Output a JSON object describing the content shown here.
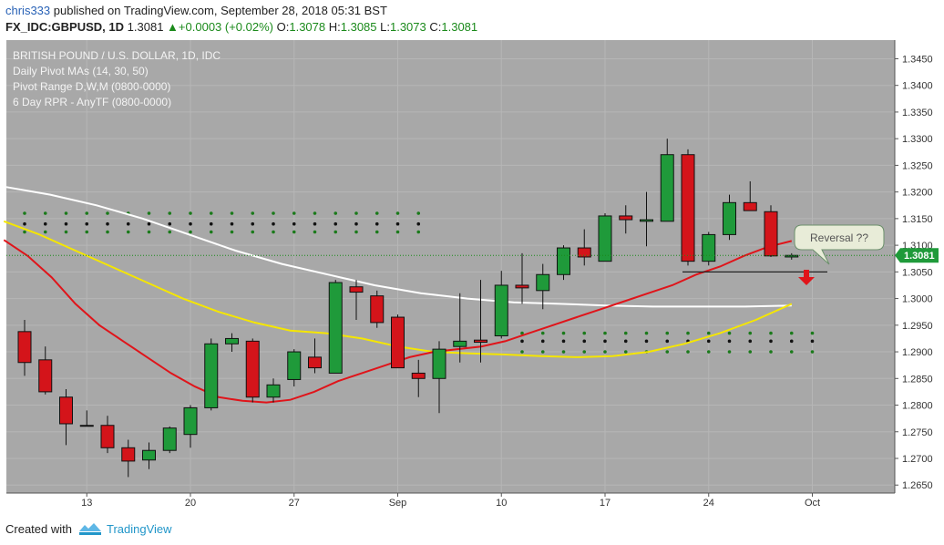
{
  "header": {
    "user": "chris333",
    "published": " published on TradingView.com, September 28, 2018 05:31 BST",
    "symbol": "FX_IDC:GBPUSD, 1D",
    "last": "1.3081",
    "change": "+0.0003 (+0.02%)",
    "open_label": "O:",
    "open": "1.3078",
    "high_label": "H:",
    "high": "1.3085",
    "low_label": "L:",
    "low": "1.3073",
    "close_label": "C:",
    "close": "1.3081"
  },
  "footer": {
    "created_with": "Created with",
    "brand": "TradingView"
  },
  "chart_data": {
    "type": "candlestick",
    "title": "BRITISH POUND / U.S. DOLLAR, 1D, IDC",
    "indicators": [
      "Daily Pivot MAs (14, 30, 50)",
      "Pivot Range D,W,M (0800-0000)",
      "6 Day RPR - AnyTF (0800-0000)"
    ],
    "ylim": [
      1.2635,
      1.3485
    ],
    "yticks": [
      "1.3450",
      "1.3400",
      "1.3350",
      "1.3300",
      "1.3250",
      "1.3200",
      "1.3150",
      "1.3100",
      "1.3050",
      "1.3000",
      "1.2950",
      "1.2900",
      "1.2850",
      "1.2800",
      "1.2750",
      "1.2700",
      "1.2650"
    ],
    "xticks": [
      {
        "label": "13",
        "i": 3
      },
      {
        "label": "20",
        "i": 8
      },
      {
        "label": "27",
        "i": 13
      },
      {
        "label": "Sep",
        "i": 18
      },
      {
        "label": "10",
        "i": 23
      },
      {
        "label": "17",
        "i": 28
      },
      {
        "label": "24",
        "i": 33
      },
      {
        "label": "Oct",
        "i": 38
      }
    ],
    "last_price": "1.3081",
    "annotation": "Reversal ??",
    "candles": [
      {
        "o": 1.2938,
        "h": 1.296,
        "l": 1.2855,
        "c": 1.288
      },
      {
        "o": 1.2885,
        "h": 1.291,
        "l": 1.282,
        "c": 1.2825
      },
      {
        "o": 1.2815,
        "h": 1.283,
        "l": 1.2725,
        "c": 1.2765
      },
      {
        "o": 1.2762,
        "h": 1.279,
        "l": 1.276,
        "c": 1.2761
      },
      {
        "o": 1.2762,
        "h": 1.278,
        "l": 1.271,
        "c": 1.272
      },
      {
        "o": 1.272,
        "h": 1.2735,
        "l": 1.2665,
        "c": 1.2695
      },
      {
        "o": 1.2697,
        "h": 1.273,
        "l": 1.268,
        "c": 1.2715
      },
      {
        "o": 1.2715,
        "h": 1.276,
        "l": 1.271,
        "c": 1.2757
      },
      {
        "o": 1.2745,
        "h": 1.28,
        "l": 1.272,
        "c": 1.2795
      },
      {
        "o": 1.2795,
        "h": 1.2925,
        "l": 1.279,
        "c": 1.2915
      },
      {
        "o": 1.2915,
        "h": 1.2935,
        "l": 1.29,
        "c": 1.2925
      },
      {
        "o": 1.292,
        "h": 1.2925,
        "l": 1.2805,
        "c": 1.2815
      },
      {
        "o": 1.2815,
        "h": 1.285,
        "l": 1.2805,
        "c": 1.2838
      },
      {
        "o": 1.2848,
        "h": 1.2905,
        "l": 1.2835,
        "c": 1.29
      },
      {
        "o": 1.289,
        "h": 1.2925,
        "l": 1.286,
        "c": 1.287
      },
      {
        "o": 1.286,
        "h": 1.3035,
        "l": 1.286,
        "c": 1.303
      },
      {
        "o": 1.3022,
        "h": 1.3035,
        "l": 1.296,
        "c": 1.3012
      },
      {
        "o": 1.3005,
        "h": 1.3015,
        "l": 1.2945,
        "c": 1.2955
      },
      {
        "o": 1.2965,
        "h": 1.297,
        "l": 1.287,
        "c": 1.287
      },
      {
        "o": 1.286,
        "h": 1.2885,
        "l": 1.2815,
        "c": 1.285
      },
      {
        "o": 1.285,
        "h": 1.292,
        "l": 1.2785,
        "c": 1.2905
      },
      {
        "o": 1.291,
        "h": 1.301,
        "l": 1.288,
        "c": 1.292
      },
      {
        "o": 1.2922,
        "h": 1.3035,
        "l": 1.288,
        "c": 1.2918
      },
      {
        "o": 1.293,
        "h": 1.3052,
        "l": 1.2925,
        "c": 1.3025
      },
      {
        "o": 1.3025,
        "h": 1.3085,
        "l": 1.299,
        "c": 1.302
      },
      {
        "o": 1.3015,
        "h": 1.3065,
        "l": 1.298,
        "c": 1.3045
      },
      {
        "o": 1.3045,
        "h": 1.31,
        "l": 1.3035,
        "c": 1.3095
      },
      {
        "o": 1.3095,
        "h": 1.313,
        "l": 1.3062,
        "c": 1.3078
      },
      {
        "o": 1.307,
        "h": 1.316,
        "l": 1.307,
        "c": 1.3155
      },
      {
        "o": 1.3155,
        "h": 1.3175,
        "l": 1.3122,
        "c": 1.3148
      },
      {
        "o": 1.3145,
        "h": 1.32,
        "l": 1.3098,
        "c": 1.3148
      },
      {
        "o": 1.3145,
        "h": 1.33,
        "l": 1.3145,
        "c": 1.327
      },
      {
        "o": 1.327,
        "h": 1.328,
        "l": 1.3062,
        "c": 1.307
      },
      {
        "o": 1.307,
        "h": 1.3125,
        "l": 1.3062,
        "c": 1.312
      },
      {
        "o": 1.312,
        "h": 1.3195,
        "l": 1.311,
        "c": 1.318
      },
      {
        "o": 1.318,
        "h": 1.322,
        "l": 1.317,
        "c": 1.3165
      },
      {
        "o": 1.3163,
        "h": 1.3175,
        "l": 1.3078,
        "c": 1.308
      },
      {
        "o": 1.3078,
        "h": 1.3085,
        "l": 1.3073,
        "c": 1.3081
      }
    ],
    "ma14": [
      1.311,
      1.308,
      1.304,
      1.299,
      1.295,
      1.292,
      1.289,
      1.286,
      1.2835,
      1.2815,
      1.2808,
      1.2805,
      1.281,
      1.2825,
      1.2845,
      1.286,
      1.2875,
      1.289,
      1.29,
      1.2905,
      1.291,
      1.292,
      1.2935,
      1.295,
      1.2965,
      1.298,
      1.2995,
      1.301,
      1.3025,
      1.3045,
      1.306,
      1.308,
      1.3097,
      1.3108
    ],
    "ma14_x": [
      8,
      11,
      14,
      17,
      20,
      23,
      26,
      29,
      32,
      35,
      38,
      41,
      44,
      47,
      50,
      53,
      56,
      59,
      62,
      65,
      68,
      71,
      74,
      77,
      80,
      83,
      86,
      89,
      92,
      95,
      98,
      101,
      104,
      107
    ],
    "ma30": [
      1.3145,
      1.312,
      1.309,
      1.306,
      1.303,
      1.3,
      1.2975,
      1.2955,
      1.294,
      1.2935,
      1.2925,
      1.291,
      1.29,
      1.2897,
      1.2895,
      1.2892,
      1.289,
      1.2892,
      1.29,
      1.2915,
      1.2935,
      1.296,
      1.299
    ],
    "ma50": [
      1.321,
      1.3195,
      1.3175,
      1.315,
      1.312,
      1.309,
      1.3065,
      1.3045,
      1.3025,
      1.301,
      1.3,
      1.2993,
      1.299,
      1.2987,
      1.2985,
      1.2985,
      1.2985,
      1.2987
    ],
    "pivot_rows": [
      1.316,
      1.314,
      1.3125,
      1.2935,
      1.292,
      1.29
    ],
    "reversal_y": 1.305
  }
}
